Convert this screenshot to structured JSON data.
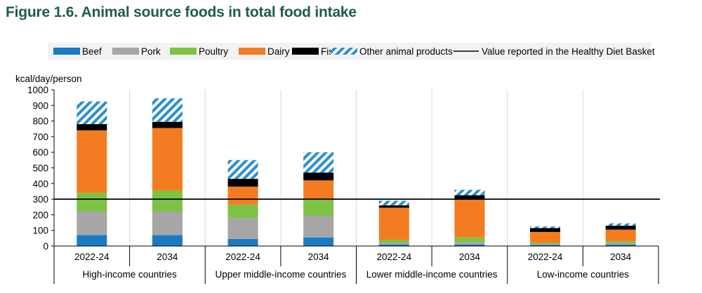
{
  "figure_title": "Figure 1.6. Animal source foods in total food intake",
  "colors": {
    "Beef": "#1a7ac4",
    "Pork": "#a6a6a6",
    "Poultry": "#7dc242",
    "Dairy": "#f47c20",
    "Fish": "#000000",
    "Other animal products": "#2b8fd0",
    "reference_line": "#000000",
    "legend_bg": "#f2f2f2",
    "gridline": "#ffffff",
    "plot_bg": "#ffffff"
  },
  "chart_data": {
    "type": "bar",
    "stacked": true,
    "ylabel": "kcal/day/person",
    "ylim": [
      0,
      1000
    ],
    "yticks": [
      0,
      100,
      200,
      300,
      400,
      500,
      600,
      700,
      800,
      900,
      1000
    ],
    "groups": [
      {
        "label": "High-income countries",
        "categories": [
          "2022-24",
          "2034"
        ]
      },
      {
        "label": "Upper middle-income countries",
        "categories": [
          "2022-24",
          "2034"
        ]
      },
      {
        "label": "Lower middle-income countries",
        "categories": [
          "2022-24",
          "2034"
        ]
      },
      {
        "label": "Low-income countries",
        "categories": [
          "2022-24",
          "2034"
        ]
      }
    ],
    "series": [
      {
        "name": "Beef",
        "values": [
          70,
          70,
          45,
          55,
          10,
          10,
          8,
          10
        ]
      },
      {
        "name": "Pork",
        "values": [
          150,
          150,
          135,
          140,
          10,
          15,
          5,
          8
        ]
      },
      {
        "name": "Poultry",
        "values": [
          120,
          135,
          85,
          105,
          20,
          30,
          7,
          12
        ]
      },
      {
        "name": "Dairy",
        "values": [
          400,
          400,
          115,
          120,
          205,
          245,
          70,
          75
        ]
      },
      {
        "name": "Fish",
        "values": [
          40,
          40,
          50,
          50,
          15,
          25,
          25,
          25
        ]
      },
      {
        "name": "Other animal products",
        "values": [
          145,
          150,
          120,
          130,
          30,
          35,
          10,
          15
        ],
        "pattern": "diagonal-hatch"
      }
    ],
    "reference_line": {
      "name": "Value reported in the Healthy Diet Basket",
      "value": 300
    },
    "legend_position": "top",
    "grid": "vertical separators between bars"
  }
}
